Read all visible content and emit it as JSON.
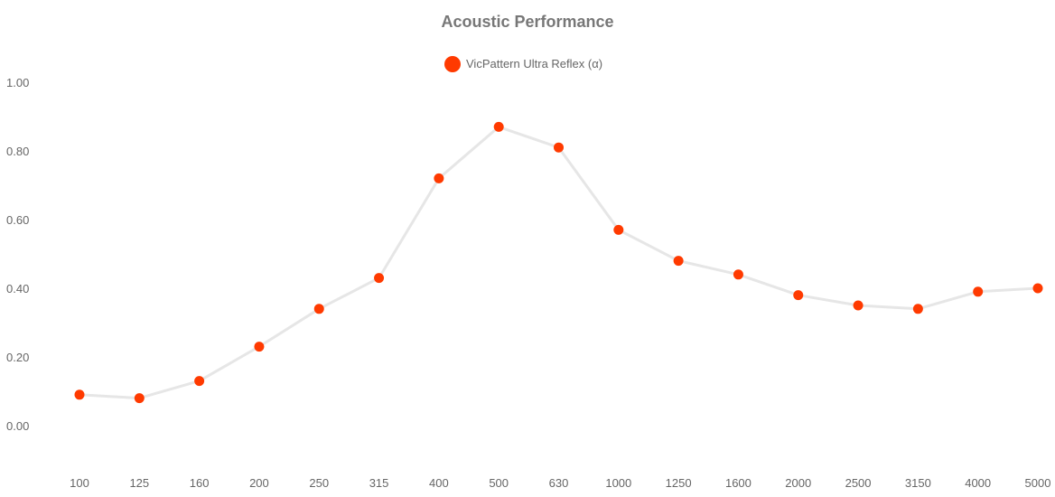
{
  "chart_data": {
    "type": "line",
    "title": "Acoustic Performance",
    "categories": [
      "100",
      "125",
      "160",
      "200",
      "250",
      "315",
      "400",
      "500",
      "630",
      "1000",
      "1250",
      "1600",
      "2000",
      "2500",
      "3150",
      "4000",
      "5000"
    ],
    "series": [
      {
        "name": "VicPattern Ultra Reflex (α)",
        "values": [
          0.09,
          0.08,
          0.13,
          0.23,
          0.34,
          0.43,
          0.72,
          0.87,
          0.81,
          0.57,
          0.48,
          0.44,
          0.38,
          0.35,
          0.34,
          0.39,
          0.4
        ]
      }
    ],
    "ylim": [
      0,
      1
    ],
    "yticks": [
      "0.00",
      "0.20",
      "0.40",
      "0.60",
      "0.80",
      "1.00"
    ],
    "grid": false,
    "legend_position": "top-center",
    "colors": {
      "marker": "#ff3a00",
      "line": "#e6e6e6",
      "title": "#777777",
      "text": "#666666"
    }
  }
}
